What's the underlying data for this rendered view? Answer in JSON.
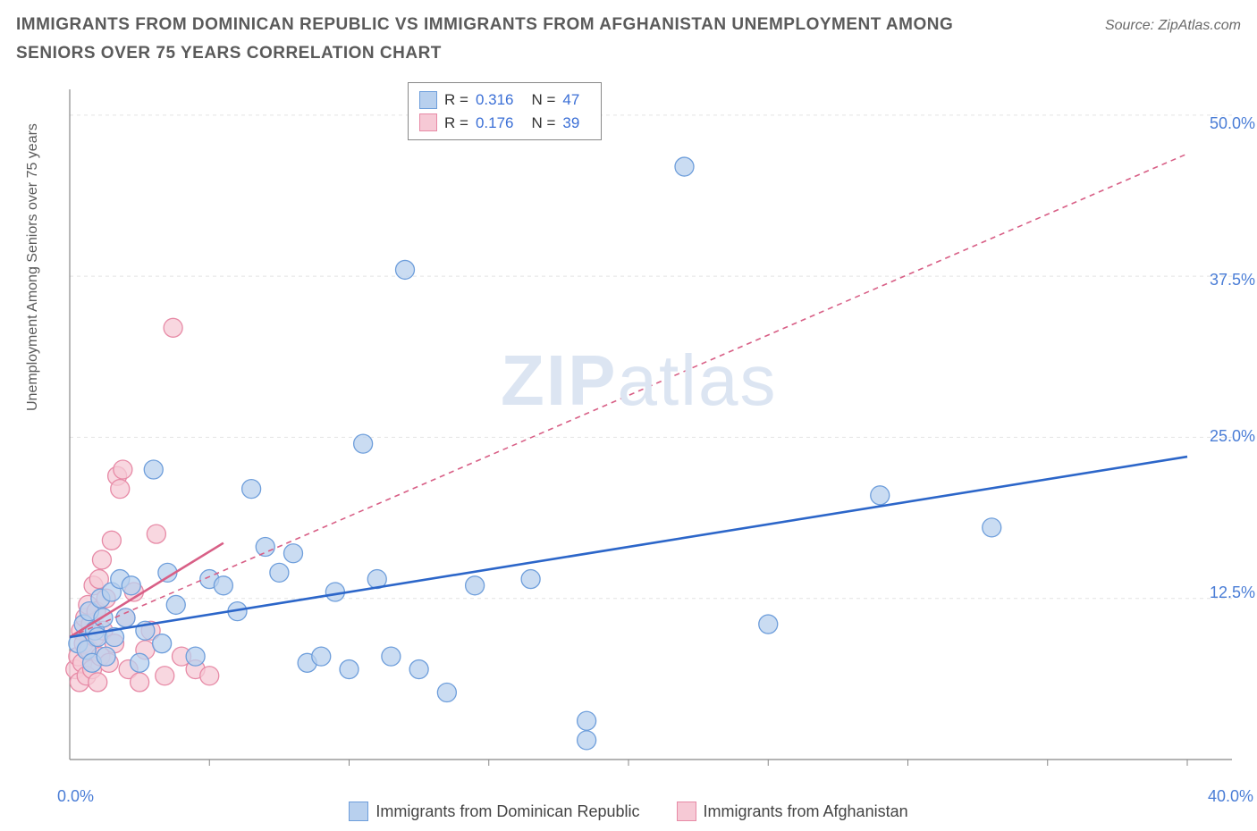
{
  "title": "IMMIGRANTS FROM DOMINICAN REPUBLIC VS IMMIGRANTS FROM AFGHANISTAN UNEMPLOYMENT AMONG SENIORS OVER 75 YEARS CORRELATION CHART",
  "source": "Source: ZipAtlas.com",
  "ylabel": "Unemployment Among Seniors over 75 years",
  "watermark_bold": "ZIP",
  "watermark_light": "atlas",
  "chart": {
    "type": "scatter",
    "bg_color": "#ffffff",
    "grid_color": "#e4e4e4",
    "axis_color": "#888888",
    "xlim": [
      0,
      40
    ],
    "ylim": [
      0,
      52
    ],
    "x_label_min": "0.0%",
    "x_label_max": "40.0%",
    "y_ticks": [
      12.5,
      25.0,
      37.5,
      50.0
    ],
    "y_tick_labels": [
      "12.5%",
      "25.0%",
      "37.5%",
      "50.0%"
    ],
    "x_minor_ticks": [
      5,
      10,
      15,
      20,
      25,
      30,
      35,
      40
    ],
    "series": [
      {
        "name": "Immigrants from Dominican Republic",
        "color_fill": "#b8d0ee",
        "color_stroke": "#6e9edb",
        "line_color": "#2c66c9",
        "line_dash": "none",
        "R": "0.316",
        "N": "47",
        "trend": {
          "x1": 0,
          "y1": 9.5,
          "x2": 40,
          "y2": 23.5
        },
        "points": [
          [
            0.3,
            9
          ],
          [
            0.5,
            10.5
          ],
          [
            0.6,
            8.5
          ],
          [
            0.7,
            11.5
          ],
          [
            0.8,
            7.5
          ],
          [
            0.9,
            10
          ],
          [
            1.0,
            9.5
          ],
          [
            1.1,
            12.5
          ],
          [
            1.2,
            11
          ],
          [
            1.3,
            8
          ],
          [
            1.5,
            13
          ],
          [
            1.6,
            9.5
          ],
          [
            1.8,
            14
          ],
          [
            2.0,
            11
          ],
          [
            2.2,
            13.5
          ],
          [
            2.5,
            7.5
          ],
          [
            2.7,
            10
          ],
          [
            3.0,
            22.5
          ],
          [
            3.3,
            9
          ],
          [
            3.5,
            14.5
          ],
          [
            3.8,
            12
          ],
          [
            4.5,
            8
          ],
          [
            5.0,
            14
          ],
          [
            5.5,
            13.5
          ],
          [
            6.0,
            11.5
          ],
          [
            6.5,
            21
          ],
          [
            7.0,
            16.5
          ],
          [
            7.5,
            14.5
          ],
          [
            8.0,
            16
          ],
          [
            8.5,
            7.5
          ],
          [
            9.0,
            8
          ],
          [
            9.5,
            13
          ],
          [
            10.0,
            7
          ],
          [
            10.5,
            24.5
          ],
          [
            11.0,
            14
          ],
          [
            11.5,
            8
          ],
          [
            12.0,
            38
          ],
          [
            12.5,
            7
          ],
          [
            13.5,
            5.2
          ],
          [
            14.5,
            13.5
          ],
          [
            16.5,
            14
          ],
          [
            18.5,
            3
          ],
          [
            18.5,
            1.5
          ],
          [
            22.0,
            46
          ],
          [
            25.0,
            10.5
          ],
          [
            29.0,
            20.5
          ],
          [
            33.0,
            18
          ]
        ]
      },
      {
        "name": "Immigrants from Afghanistan",
        "color_fill": "#f6c9d5",
        "color_stroke": "#e78aa6",
        "line_color": "#d85f86",
        "line_dash": "6,5",
        "R": "0.176",
        "N": "39",
        "trend_solid": {
          "x1": 0,
          "y1": 9.5,
          "x2": 5.5,
          "y2": 16.8
        },
        "trend": {
          "x1": 0,
          "y1": 9.5,
          "x2": 40,
          "y2": 47
        },
        "points": [
          [
            0.2,
            7
          ],
          [
            0.3,
            8
          ],
          [
            0.35,
            6
          ],
          [
            0.4,
            10
          ],
          [
            0.45,
            7.5
          ],
          [
            0.5,
            9
          ],
          [
            0.55,
            11
          ],
          [
            0.6,
            6.5
          ],
          [
            0.65,
            12
          ],
          [
            0.7,
            8.5
          ],
          [
            0.75,
            10.5
          ],
          [
            0.8,
            7
          ],
          [
            0.85,
            13.5
          ],
          [
            0.9,
            9.5
          ],
          [
            0.95,
            11.5
          ],
          [
            1.0,
            6
          ],
          [
            1.05,
            14
          ],
          [
            1.1,
            8
          ],
          [
            1.15,
            15.5
          ],
          [
            1.2,
            10
          ],
          [
            1.3,
            12.5
          ],
          [
            1.4,
            7.5
          ],
          [
            1.5,
            17
          ],
          [
            1.6,
            9
          ],
          [
            1.7,
            22
          ],
          [
            1.8,
            21
          ],
          [
            1.9,
            22.5
          ],
          [
            2.0,
            11
          ],
          [
            2.1,
            7
          ],
          [
            2.3,
            13
          ],
          [
            2.5,
            6
          ],
          [
            2.7,
            8.5
          ],
          [
            2.9,
            10
          ],
          [
            3.1,
            17.5
          ],
          [
            3.4,
            6.5
          ],
          [
            3.7,
            33.5
          ],
          [
            4.0,
            8
          ],
          [
            4.5,
            7
          ],
          [
            5.0,
            6.5
          ]
        ]
      }
    ]
  },
  "legend": {
    "r_label": "R =",
    "n_label": "N ="
  },
  "bottom_legend": {
    "s1_label": "Immigrants from Dominican Republic",
    "s2_label": "Immigrants from Afghanistan"
  }
}
